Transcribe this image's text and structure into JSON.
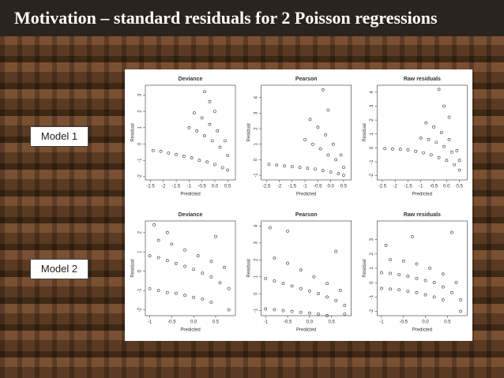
{
  "title": "Motivation – standard residuals for 2 Poisson regressions",
  "labels": [
    "Model 1",
    "Model 2"
  ],
  "chart_data": [
    {
      "type": "scatter",
      "title": "Deviance",
      "x_label": "Predicted",
      "y_label": "Residual",
      "color": "#333333",
      "x": [
        -2.4,
        -2.1,
        -1.8,
        -1.5,
        -1.2,
        -0.9,
        -0.6,
        -0.3,
        0.0,
        0.3,
        0.5,
        -1.0,
        -0.7,
        -0.4,
        -0.1,
        0.2,
        0.5,
        -0.8,
        -0.5,
        -0.2,
        0.1,
        0.4,
        -0.4,
        -0.2,
        0.0
      ],
      "y": [
        -0.4,
        -0.45,
        -0.55,
        -0.65,
        -0.75,
        -0.85,
        -1.0,
        -1.1,
        -1.25,
        -1.45,
        -1.6,
        1.0,
        0.8,
        0.5,
        0.2,
        -0.2,
        -0.7,
        1.9,
        1.6,
        1.2,
        0.8,
        0.2,
        3.2,
        2.6,
        2.0
      ],
      "xlim": [
        -2.7,
        0.8
      ],
      "ylim": [
        -2.2,
        3.6
      ],
      "xticks": [
        -2.5,
        -2.0,
        -1.5,
        -1.0,
        -0.5,
        {
          "value": 0,
          "label": "0.0"
        },
        0.5
      ],
      "yticks": [
        -2,
        -1,
        0,
        1,
        2,
        3
      ]
    },
    {
      "type": "scatter",
      "title": "Pearson",
      "x_label": "Predicted",
      "y_label": "Residual",
      "color": "#333333",
      "x": [
        -2.4,
        -2.1,
        -1.8,
        -1.5,
        -1.2,
        -0.9,
        -0.6,
        -0.3,
        0.0,
        0.3,
        0.5,
        -1.0,
        -0.7,
        -0.4,
        -0.1,
        0.2,
        0.5,
        -0.8,
        -0.5,
        -0.2,
        0.1,
        0.4,
        -0.3,
        -0.1
      ],
      "y": [
        -0.3,
        -0.35,
        -0.4,
        -0.45,
        -0.5,
        -0.55,
        -0.6,
        -0.7,
        -0.8,
        -0.9,
        -1.0,
        1.3,
        1.0,
        0.7,
        0.3,
        0.0,
        -0.5,
        2.6,
        2.1,
        1.6,
        1.0,
        0.3,
        4.5,
        3.2
      ],
      "xlim": [
        -2.7,
        0.8
      ],
      "ylim": [
        -1.3,
        4.8
      ],
      "xticks": [
        -2.5,
        -2.0,
        -1.5,
        -1.0,
        -0.5,
        {
          "value": 0,
          "label": "0.0"
        },
        0.5
      ],
      "yticks": [
        -1,
        0,
        1,
        2,
        3,
        4
      ]
    },
    {
      "type": "scatter",
      "title": "Raw residuals",
      "x_label": "Predicted",
      "y_label": "Residual",
      "color": "#333333",
      "x": [
        -2.4,
        -2.1,
        -1.8,
        -1.5,
        -1.2,
        -0.9,
        -0.6,
        -0.3,
        0.0,
        0.3,
        0.5,
        -1.0,
        -0.7,
        -0.4,
        -0.1,
        0.2,
        0.5,
        -0.8,
        -0.5,
        -0.2,
        0.1,
        0.4,
        -0.3,
        -0.1,
        0.1
      ],
      "y": [
        -0.05,
        -0.08,
        -0.1,
        -0.15,
        -0.25,
        -0.35,
        -0.5,
        -0.7,
        -0.9,
        -1.2,
        -1.6,
        0.7,
        0.6,
        0.4,
        0.1,
        -0.3,
        -0.9,
        1.8,
        1.5,
        1.1,
        0.6,
        -0.2,
        4.2,
        3.0,
        2.2
      ],
      "xlim": [
        -2.7,
        0.8
      ],
      "ylim": [
        -2.3,
        4.5
      ],
      "xticks": [
        -2.5,
        -2.0,
        -1.5,
        -1.0,
        -0.5,
        {
          "value": 0,
          "label": "0.0"
        },
        0.5
      ],
      "yticks": [
        -2,
        -1,
        0,
        1,
        2,
        3,
        4
      ]
    },
    {
      "type": "scatter",
      "title": "Deviance",
      "x_label": "Predicted",
      "y_label": "Residual",
      "color": "#333333",
      "x": [
        -1.0,
        -0.8,
        -0.6,
        -0.4,
        -0.2,
        0.0,
        0.2,
        0.4,
        -1.0,
        -0.8,
        -0.6,
        -0.4,
        -0.2,
        0.0,
        0.2,
        0.4,
        0.6,
        0.8,
        -0.8,
        -0.5,
        -0.2,
        0.1,
        0.4,
        0.7,
        -0.9,
        -0.6,
        0.5,
        0.8
      ],
      "y": [
        -0.9,
        -1.0,
        -1.1,
        -1.15,
        -1.25,
        -1.35,
        -1.45,
        -1.6,
        0.8,
        0.7,
        0.55,
        0.4,
        0.25,
        0.1,
        -0.1,
        -0.3,
        -0.6,
        -0.9,
        1.6,
        1.4,
        1.1,
        0.8,
        0.5,
        0.2,
        2.4,
        2.0,
        1.8,
        -2.0
      ],
      "xlim": [
        -1.1,
        0.95
      ],
      "ylim": [
        -2.3,
        2.6
      ],
      "xticks": [
        -1.0,
        -0.5,
        {
          "value": 0,
          "label": "0.0"
        },
        0.5
      ],
      "yticks": [
        -2,
        -1,
        0,
        1,
        2
      ]
    },
    {
      "type": "scatter",
      "title": "Pearson",
      "x_label": "Predicted",
      "y_label": "Residual",
      "color": "#333333",
      "x": [
        -1.0,
        -0.8,
        -0.6,
        -0.4,
        -0.2,
        0.0,
        0.2,
        0.4,
        -1.0,
        -0.8,
        -0.6,
        -0.4,
        -0.2,
        0.0,
        0.2,
        0.4,
        0.6,
        0.8,
        -0.8,
        -0.5,
        -0.2,
        0.1,
        0.4,
        0.7,
        -0.9,
        -0.5,
        0.6,
        0.8
      ],
      "y": [
        -0.9,
        -0.95,
        -1.0,
        -1.05,
        -1.1,
        -1.15,
        -1.2,
        -1.3,
        0.9,
        0.75,
        0.6,
        0.45,
        0.3,
        0.15,
        0.0,
        -0.2,
        -0.4,
        -0.7,
        2.1,
        1.8,
        1.4,
        1.0,
        0.6,
        0.2,
        3.9,
        3.7,
        2.5,
        -1.2
      ],
      "xlim": [
        -1.1,
        0.95
      ],
      "ylim": [
        -1.3,
        4.3
      ],
      "xticks": [
        -1.0,
        -0.5,
        {
          "value": 0,
          "label": "0.0"
        },
        0.5
      ],
      "yticks": [
        -1,
        0,
        1,
        2,
        3,
        4
      ]
    },
    {
      "type": "scatter",
      "title": "Raw residuals",
      "x_label": "Predicted",
      "y_label": "Residual",
      "color": "#333333",
      "x": [
        -1.0,
        -0.8,
        -0.6,
        -0.4,
        -0.2,
        0.0,
        0.2,
        0.4,
        -1.0,
        -0.8,
        -0.6,
        -0.4,
        -0.2,
        0.0,
        0.2,
        0.4,
        0.6,
        0.8,
        -0.8,
        -0.5,
        -0.2,
        0.1,
        0.4,
        0.7,
        -0.9,
        -0.3,
        0.6,
        0.8
      ],
      "y": [
        -0.4,
        -0.45,
        -0.5,
        -0.6,
        -0.7,
        -0.85,
        -1.0,
        -1.2,
        0.7,
        0.65,
        0.55,
        0.45,
        0.3,
        0.15,
        0.0,
        -0.3,
        -0.7,
        -1.2,
        1.6,
        1.5,
        1.3,
        1.0,
        0.6,
        0.0,
        2.6,
        3.2,
        3.5,
        -2.0
      ],
      "xlim": [
        -1.1,
        0.95
      ],
      "ylim": [
        -2.3,
        4.3
      ],
      "xticks": [
        -1.0,
        -0.5,
        {
          "value": 0,
          "label": "0.0"
        },
        0.5
      ],
      "yticks": [
        -2,
        -1,
        0,
        1,
        2,
        3
      ]
    }
  ]
}
